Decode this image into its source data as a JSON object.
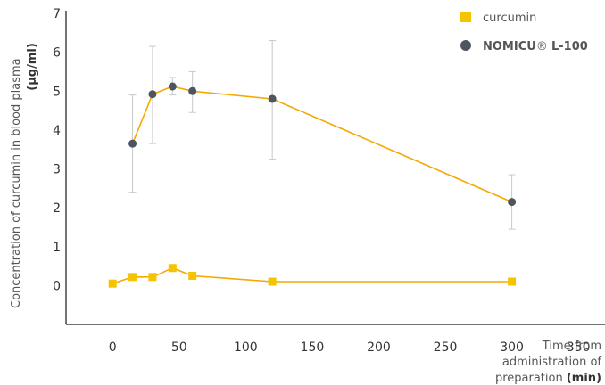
{
  "chart_data": {
    "type": "line",
    "ylabel": "Concentration of curcumin in blood plasma",
    "ylabel_unit": "(µg/ml)",
    "xlabel_lines": [
      "Time from",
      "administration of",
      "preparation"
    ],
    "xlabel_unit": "(min)",
    "xlim": [
      -35,
      370
    ],
    "ylim": [
      -1,
      7
    ],
    "x_ticks": [
      0,
      50,
      100,
      150,
      200,
      250,
      300,
      350
    ],
    "y_ticks": [
      0,
      1,
      2,
      3,
      4,
      5,
      6,
      7
    ],
    "grid": false,
    "legend_position": "top-right",
    "line_color": "#f5a800",
    "series": [
      {
        "name": "curcumin",
        "marker": "square",
        "color": "#f5c400",
        "points": [
          {
            "x": 0,
            "y": 0.05
          },
          {
            "x": 15,
            "y": 0.22
          },
          {
            "x": 30,
            "y": 0.22
          },
          {
            "x": 45,
            "y": 0.45
          },
          {
            "x": 60,
            "y": 0.25
          },
          {
            "x": 120,
            "y": 0.1
          },
          {
            "x": 300,
            "y": 0.1
          }
        ]
      },
      {
        "name_parts": [
          "NOMI",
          "CU",
          "® ",
          "L-100"
        ],
        "marker": "circle",
        "color": "#4d5560",
        "points": [
          {
            "x": 15,
            "y": 3.65,
            "err_low": 2.4,
            "err_high": 4.9
          },
          {
            "x": 30,
            "y": 4.92,
            "err_low": 3.65,
            "err_high": 6.15
          },
          {
            "x": 45,
            "y": 5.12,
            "err_low": 4.9,
            "err_high": 5.35
          },
          {
            "x": 60,
            "y": 5.0,
            "err_low": 4.45,
            "err_high": 5.5
          },
          {
            "x": 120,
            "y": 4.8,
            "err_low": 3.25,
            "err_high": 6.3
          },
          {
            "x": 300,
            "y": 2.15,
            "err_low": 1.45,
            "err_high": 2.85
          }
        ]
      }
    ]
  }
}
